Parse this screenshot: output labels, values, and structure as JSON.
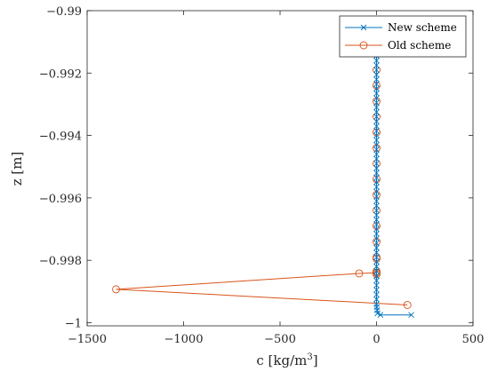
{
  "chart_data": {
    "type": "line",
    "title": "",
    "xlabel": "c [kg/m",
    "xlabel_sup": "3",
    "xlabel_close": "]",
    "ylabel": "z [m]",
    "xlim": [
      -1500,
      500
    ],
    "ylim": [
      -1.0001,
      -0.99
    ],
    "x_ticks": [
      -1500,
      -1000,
      -500,
      0,
      500
    ],
    "x_tick_labels": [
      "−1500",
      "−1000",
      "−500",
      "0",
      "500"
    ],
    "y_ticks": [
      -1,
      -0.998,
      -0.996,
      -0.994,
      -0.992,
      -0.99
    ],
    "y_tick_labels": [
      "−1",
      "−0.998",
      "−0.996",
      "−0.994",
      "−0.992",
      "−0.99"
    ],
    "grid": false,
    "legend_position": "top-right",
    "colors": {
      "new": "#0072BD",
      "old": "#D95319",
      "axes": "#262626"
    },
    "series": [
      {
        "name": "New scheme",
        "marker": "x",
        "x": [
          0,
          0,
          0,
          0,
          0,
          0,
          0,
          0,
          0,
          0,
          0,
          0,
          0,
          0,
          0,
          0,
          0,
          0,
          0,
          0,
          0,
          0,
          0,
          0,
          0,
          0,
          0,
          0,
          0,
          0,
          0,
          0,
          0,
          0,
          0,
          0,
          0,
          0,
          0,
          0,
          0,
          0,
          0,
          0,
          0,
          0,
          0,
          0,
          0,
          0,
          0,
          0,
          0,
          0,
          0,
          0,
          0,
          0,
          0,
          0,
          0,
          0,
          1,
          3,
          5,
          20,
          180
        ],
        "y": [
          -0.99025,
          -0.9904,
          -0.99055,
          -0.9907,
          -0.99085,
          -0.991,
          -0.99115,
          -0.9913,
          -0.99145,
          -0.9916,
          -0.99175,
          -0.9919,
          -0.99205,
          -0.9922,
          -0.99235,
          -0.9925,
          -0.99265,
          -0.9928,
          -0.99295,
          -0.9931,
          -0.99325,
          -0.9934,
          -0.99355,
          -0.9937,
          -0.99385,
          -0.994,
          -0.99415,
          -0.9943,
          -0.99445,
          -0.9946,
          -0.99475,
          -0.9949,
          -0.99505,
          -0.9952,
          -0.99535,
          -0.9955,
          -0.99565,
          -0.9958,
          -0.99595,
          -0.9961,
          -0.99625,
          -0.9964,
          -0.99655,
          -0.9967,
          -0.99685,
          -0.997,
          -0.99715,
          -0.9973,
          -0.99745,
          -0.9976,
          -0.99775,
          -0.9979,
          -0.99805,
          -0.9982,
          -0.99835,
          -0.9985,
          -0.99865,
          -0.9988,
          -0.99895,
          -0.9991,
          -0.99925,
          -0.9994,
          -0.9995,
          -0.9996,
          -0.9997,
          -0.99975,
          -0.99975
        ]
      },
      {
        "name": "Old scheme",
        "marker": "o",
        "x": [
          0,
          0,
          0,
          0,
          0,
          0,
          0,
          0,
          0,
          0,
          0,
          0,
          0,
          0,
          0,
          0,
          0,
          0,
          -90,
          -1350,
          160
        ],
        "y": [
          -0.9919,
          -0.9924,
          -0.9929,
          -0.9934,
          -0.9939,
          -0.9944,
          -0.9949,
          -0.9954,
          -0.9959,
          -0.9964,
          -0.9969,
          -0.9974,
          -0.9979,
          -0.99795,
          -0.99835,
          -0.9984,
          -0.99845,
          -0.9984,
          -0.99842,
          -0.99893,
          -0.99943
        ]
      }
    ]
  }
}
